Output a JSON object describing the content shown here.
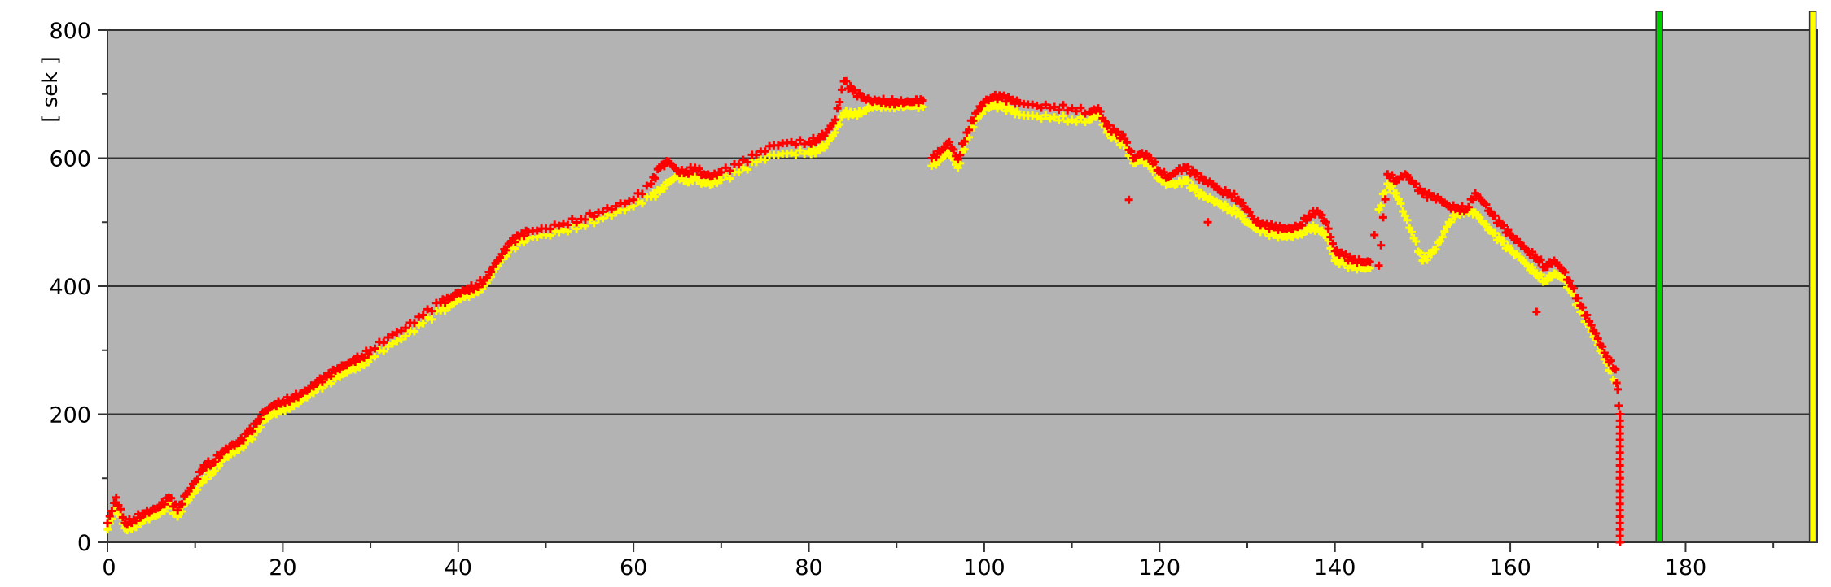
{
  "chart_data": {
    "type": "scatter",
    "title": "",
    "xlabel": "",
    "ylabel": "[ sek ]",
    "xlim": [
      0,
      195
    ],
    "ylim": [
      0,
      800
    ],
    "x_ticks": [
      0,
      20,
      40,
      60,
      80,
      100,
      120,
      140,
      160,
      180
    ],
    "y_ticks": [
      0,
      200,
      400,
      600,
      800
    ],
    "grid": "horizontal major lines at every y tick, minor tick marks every 10 on x and 100 on y",
    "background": "#b3b3b3",
    "legend": "none",
    "series": [
      {
        "color": "#ff0000",
        "marker": "plus",
        "x": [
          0,
          1,
          2,
          3,
          4,
          5,
          6,
          7,
          8,
          9,
          10,
          11,
          12,
          13,
          14,
          15,
          16,
          17,
          18,
          19,
          20,
          21,
          22,
          23,
          24,
          25,
          26,
          27,
          28,
          29,
          30,
          32,
          34,
          36,
          38,
          39,
          40,
          41,
          42,
          43,
          44,
          45,
          46,
          47,
          48,
          50,
          52,
          54,
          56,
          58,
          60,
          62,
          63,
          64,
          65,
          66,
          67,
          68,
          69,
          70,
          72,
          74,
          76,
          78,
          80,
          81,
          82,
          83,
          84,
          85,
          86,
          87,
          88,
          89,
          90,
          91,
          92,
          93,
          94,
          95,
          96,
          97,
          98,
          99,
          100,
          101,
          102,
          103,
          104,
          106,
          108,
          110,
          112,
          113,
          114,
          115,
          116,
          117,
          118,
          119,
          120,
          121,
          122,
          123,
          124,
          125,
          126,
          127,
          128,
          129,
          130,
          131,
          132,
          133,
          134,
          135,
          136,
          137,
          138,
          139,
          140,
          141,
          142,
          143,
          144,
          145,
          146,
          147,
          148,
          149,
          150,
          151,
          152,
          153,
          154,
          155,
          156,
          157,
          158,
          159,
          160,
          161,
          162,
          163,
          164,
          165,
          166,
          167,
          168,
          169,
          170,
          171,
          172,
          172.5
        ],
        "y": [
          30,
          70,
          30,
          35,
          45,
          50,
          55,
          70,
          50,
          75,
          95,
          120,
          125,
          140,
          150,
          155,
          170,
          185,
          205,
          215,
          220,
          225,
          232,
          240,
          250,
          258,
          268,
          276,
          284,
          290,
          300,
          320,
          335,
          355,
          375,
          380,
          390,
          395,
          400,
          410,
          430,
          450,
          468,
          478,
          485,
          490,
          498,
          505,
          515,
          525,
          535,
          560,
          585,
          595,
          580,
          578,
          585,
          575,
          572,
          578,
          590,
          605,
          620,
          625,
          625,
          630,
          640,
          660,
          720,
          705,
          695,
          690,
          690,
          688,
          688,
          688,
          688,
          690,
          600,
          610,
          625,
          598,
          640,
          670,
          688,
          695,
          695,
          690,
          686,
          682,
          680,
          678,
          672,
          678,
          650,
          640,
          630,
          600,
          608,
          600,
          580,
          570,
          580,
          585,
          575,
          565,
          560,
          548,
          545,
          535,
          520,
          500,
          495,
          492,
          490,
          490,
          495,
          510,
          518,
          500,
          455,
          448,
          440,
          438,
          438,
          432,
          575,
          565,
          575,
          560,
          545,
          540,
          535,
          525,
          522,
          520,
          545,
          530,
          510,
          495,
          480,
          468,
          455,
          445,
          430,
          440,
          425,
          400,
          370,
          345,
          318,
          290,
          270,
          200
        ],
        "y_outliers": [
          {
            "x": 172.5,
            "y": 0
          },
          {
            "x": 172.5,
            "y": 100
          },
          {
            "x": 116.5,
            "y": 535
          },
          {
            "x": 125.5,
            "y": 500
          },
          {
            "x": 144.5,
            "y": 480
          },
          {
            "x": 163,
            "y": 360
          }
        ]
      },
      {
        "color": "#ffff00",
        "marker": "plus",
        "x": [
          0,
          1,
          2,
          3,
          4,
          5,
          6,
          7,
          8,
          9,
          10,
          11,
          12,
          13,
          14,
          15,
          16,
          17,
          18,
          19,
          20,
          21,
          22,
          23,
          24,
          25,
          26,
          27,
          28,
          29,
          30,
          32,
          34,
          36,
          38,
          39,
          40,
          41,
          42,
          43,
          44,
          45,
          46,
          47,
          48,
          50,
          52,
          54,
          56,
          58,
          60,
          62,
          63,
          64,
          65,
          66,
          67,
          68,
          69,
          70,
          72,
          74,
          76,
          78,
          80,
          81,
          82,
          83,
          84,
          85,
          86,
          87,
          88,
          89,
          90,
          91,
          92,
          93,
          94,
          95,
          96,
          97,
          98,
          99,
          100,
          101,
          102,
          103,
          104,
          106,
          108,
          110,
          112,
          113,
          114,
          115,
          116,
          117,
          118,
          119,
          120,
          121,
          122,
          123,
          124,
          125,
          126,
          127,
          128,
          129,
          130,
          131,
          132,
          133,
          134,
          135,
          136,
          137,
          138,
          139,
          140,
          141,
          142,
          143,
          144,
          145,
          146,
          147,
          148,
          149,
          150,
          151,
          152,
          153,
          154,
          155,
          156,
          157,
          158,
          159,
          160,
          161,
          162,
          163,
          164,
          165,
          166,
          167,
          168,
          169,
          170,
          171,
          172
        ],
        "y": [
          20,
          55,
          22,
          25,
          35,
          40,
          45,
          58,
          40,
          62,
          80,
          100,
          110,
          128,
          138,
          145,
          158,
          172,
          192,
          202,
          208,
          214,
          222,
          230,
          240,
          248,
          256,
          264,
          272,
          278,
          288,
          306,
          322,
          342,
          362,
          368,
          380,
          386,
          392,
          402,
          422,
          442,
          458,
          468,
          475,
          480,
          488,
          495,
          505,
          515,
          525,
          540,
          548,
          562,
          572,
          565,
          570,
          562,
          560,
          566,
          578,
          594,
          605,
          608,
          610,
          612,
          622,
          640,
          670,
          668,
          670,
          680,
          682,
          682,
          682,
          682,
          682,
          680,
          588,
          598,
          610,
          585,
          628,
          660,
          676,
          682,
          680,
          675,
          668,
          665,
          664,
          660,
          660,
          668,
          640,
          630,
          620,
          592,
          598,
          588,
          568,
          560,
          560,
          565,
          550,
          540,
          535,
          528,
          520,
          515,
          500,
          490,
          485,
          480,
          478,
          478,
          482,
          492,
          490,
          480,
          440,
          435,
          430,
          428,
          428,
          520,
          560,
          545,
          510,
          475,
          440,
          450,
          470,
          500,
          515,
          518,
          515,
          498,
          482,
          470,
          456,
          446,
          432,
          420,
          408,
          420,
          412,
          390,
          360,
          336,
          308,
          280,
          250
        ]
      }
    ],
    "markers": [
      {
        "type": "vertical-bar",
        "x": 177,
        "color": "#00cc00"
      },
      {
        "type": "vertical-bar",
        "x": 194.5,
        "color": "#ffff00"
      }
    ]
  }
}
